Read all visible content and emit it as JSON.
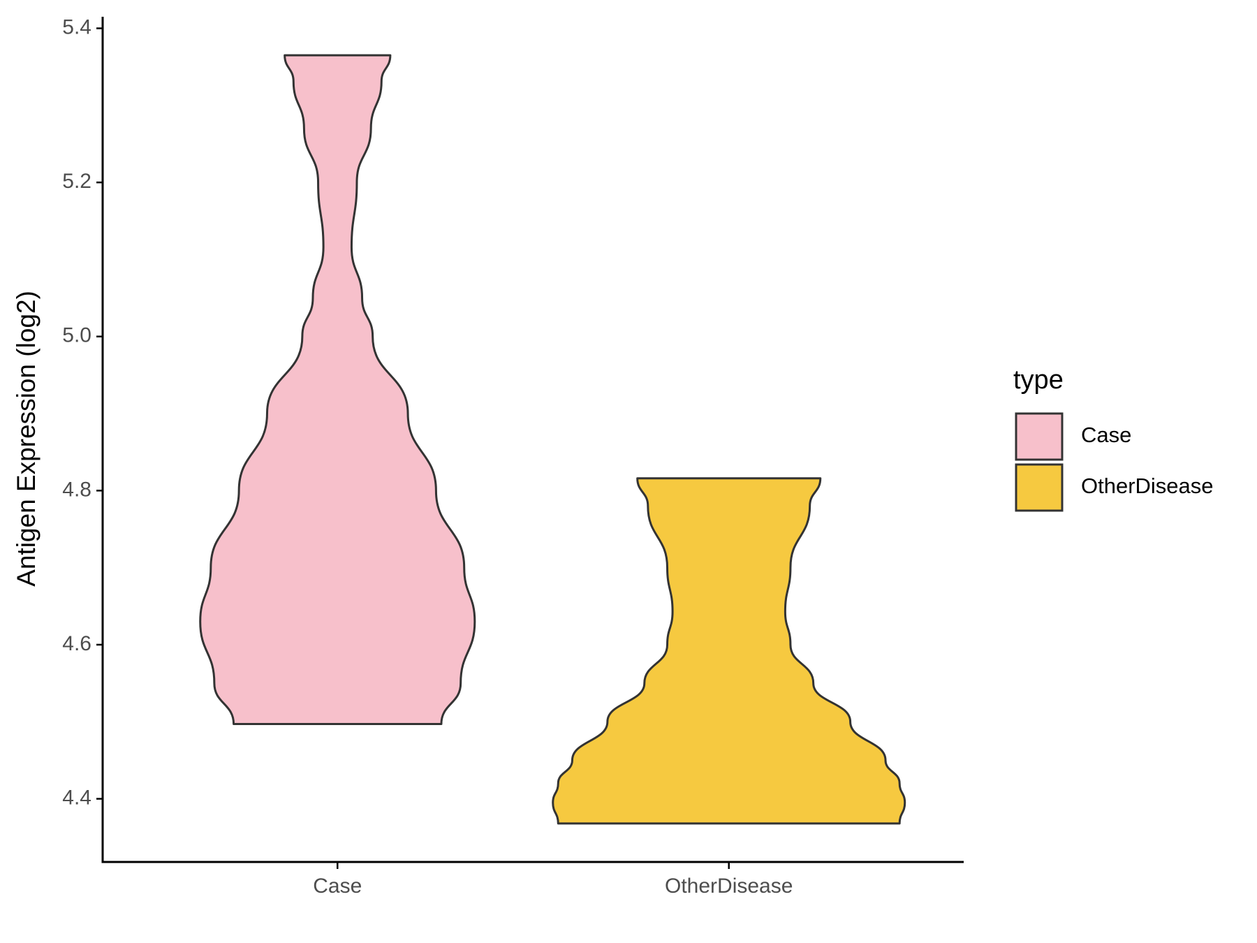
{
  "chart_data": {
    "type": "violin",
    "y_label": "Antigen Expression (log2)",
    "categories": [
      "Case",
      "OtherDisease"
    ],
    "series": [
      {
        "name": "Case",
        "color": "#f7c0cb",
        "y": [
          5.365,
          5.331,
          5.27,
          5.2,
          5.116,
          5.05,
          5.0,
          4.9,
          4.8,
          4.7,
          4.63,
          4.55,
          4.497
        ],
        "width": [
          0.3,
          0.25,
          0.19,
          0.11,
          0.08,
          0.14,
          0.2,
          0.4,
          0.56,
          0.72,
          0.78,
          0.7,
          0.59
        ]
      },
      {
        "name": "OtherDisease",
        "color": "#f6c940",
        "y": [
          4.816,
          4.78,
          4.7,
          4.643,
          4.6,
          4.55,
          4.5,
          4.45,
          4.42,
          4.395,
          4.368
        ],
        "width": [
          0.52,
          0.46,
          0.35,
          0.32,
          0.35,
          0.48,
          0.69,
          0.89,
          0.97,
          1.0,
          0.97
        ]
      }
    ],
    "ylim": [
      4.318,
      5.415
    ],
    "yticks": [
      {
        "value": 4.4,
        "label": "4.4"
      },
      {
        "value": 4.6,
        "label": "4.6"
      },
      {
        "value": 4.8,
        "label": "4.8"
      },
      {
        "value": 5.0,
        "label": "5.0"
      },
      {
        "value": 5.2,
        "label": "5.2"
      },
      {
        "value": 5.4,
        "label": "5.4"
      }
    ],
    "legend_title": "type",
    "legend": "right"
  }
}
